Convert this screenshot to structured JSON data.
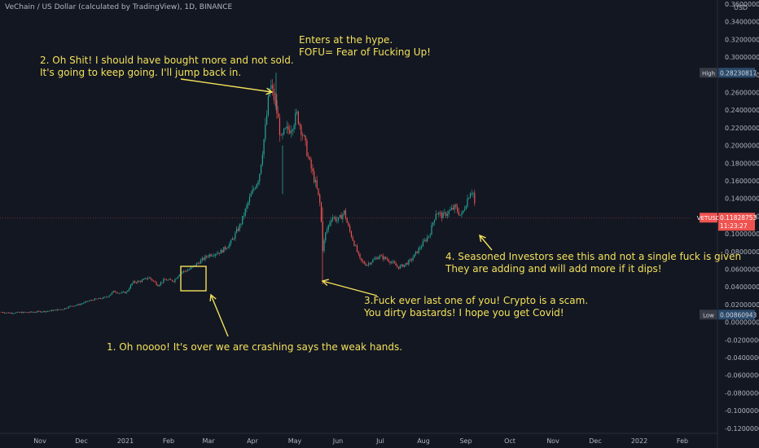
{
  "header": {
    "title": "VeChain / US Dollar (calculated by TradingView), 1D, BINANCE"
  },
  "chart_data": {
    "type": "candlestick",
    "symbol": "VETUSD",
    "currency": "USD",
    "yticks": [
      "-0.12000000",
      "-0.10000000",
      "-0.08000000",
      "-0.06000000",
      "-0.04000000",
      "-0.02000000",
      "0.00000000",
      "0.02000000",
      "0.04000000",
      "0.06000000",
      "0.08000000",
      "0.10000000",
      "0.12000000",
      "0.14000000",
      "0.16000000",
      "0.18000000",
      "0.20000000",
      "0.22000000",
      "0.24000000",
      "0.26000000",
      "0.28000000",
      "0.30000000",
      "0.32000000",
      "0.34000000",
      "0.36000000"
    ],
    "ylim": [
      -0.125,
      0.362
    ],
    "xticks": [
      "Nov",
      "Dec",
      "2021",
      "Feb",
      "Mar",
      "Apr",
      "May",
      "Jun",
      "Jul",
      "Aug",
      "Sep",
      "Oct",
      "Nov",
      "Dec",
      "2022",
      "Feb"
    ],
    "price_path": [
      [
        0.0,
        0.0115
      ],
      [
        0.03,
        0.0105
      ],
      [
        0.06,
        0.011
      ],
      [
        0.09,
        0.0112
      ],
      [
        0.12,
        0.012
      ],
      [
        0.15,
        0.0125
      ],
      [
        0.18,
        0.014
      ],
      [
        0.2,
        0.015
      ],
      [
        0.22,
        0.018
      ],
      [
        0.25,
        0.02
      ],
      [
        0.28,
        0.024
      ],
      [
        0.3,
        0.026
      ],
      [
        0.32,
        0.027
      ],
      [
        0.34,
        0.029
      ],
      [
        0.36,
        0.035
      ],
      [
        0.38,
        0.033
      ],
      [
        0.4,
        0.034
      ],
      [
        0.42,
        0.045
      ],
      [
        0.45,
        0.047
      ],
      [
        0.47,
        0.051
      ],
      [
        0.5,
        0.042
      ],
      [
        0.52,
        0.048
      ],
      [
        0.55,
        0.047
      ],
      [
        0.57,
        0.056
      ],
      [
        0.6,
        0.06
      ],
      [
        0.63,
        0.068
      ],
      [
        0.66,
        0.076
      ],
      [
        0.7,
        0.08
      ],
      [
        0.73,
        0.09
      ],
      [
        0.76,
        0.11
      ],
      [
        0.79,
        0.14
      ],
      [
        0.82,
        0.165
      ],
      [
        0.84,
        0.22
      ],
      [
        0.855,
        0.27
      ],
      [
        0.87,
        0.25
      ],
      [
        0.88,
        0.23
      ],
      [
        0.89,
        0.205
      ],
      [
        0.9,
        0.215
      ],
      [
        0.92,
        0.22
      ],
      [
        0.94,
        0.235
      ],
      [
        0.96,
        0.21
      ],
      [
        0.98,
        0.18
      ],
      [
        1.0,
        0.155
      ],
      [
        1.015,
        0.13
      ],
      [
        1.02,
        0.08
      ],
      [
        1.03,
        0.1
      ],
      [
        1.05,
        0.12
      ],
      [
        1.07,
        0.115
      ],
      [
        1.09,
        0.125
      ],
      [
        1.1,
        0.11
      ],
      [
        1.12,
        0.09
      ],
      [
        1.14,
        0.07
      ],
      [
        1.16,
        0.065
      ],
      [
        1.18,
        0.07
      ],
      [
        1.2,
        0.075
      ],
      [
        1.22,
        0.072
      ],
      [
        1.24,
        0.068
      ],
      [
        1.26,
        0.062
      ],
      [
        1.28,
        0.065
      ],
      [
        1.3,
        0.07
      ],
      [
        1.32,
        0.08
      ],
      [
        1.34,
        0.09
      ],
      [
        1.36,
        0.1
      ],
      [
        1.38,
        0.125
      ],
      [
        1.4,
        0.12
      ],
      [
        1.42,
        0.125
      ],
      [
        1.44,
        0.13
      ],
      [
        1.46,
        0.12
      ],
      [
        1.48,
        0.14
      ],
      [
        1.49,
        0.15
      ],
      [
        1.5,
        0.145
      ],
      [
        1.505,
        0.1183
      ]
    ],
    "price_labels": {
      "high": {
        "label": "High",
        "value": "0.28230817",
        "price": 0.2823
      },
      "current": {
        "label": "VETUSD",
        "value": "0.11828753",
        "countdown": "11:23:27",
        "price": 0.1183
      },
      "low": {
        "label": "Low",
        "value": "0.00860943",
        "price": 0.0086
      }
    },
    "annotations": [
      {
        "id": "note1",
        "lines": [
          "1. Oh noooo! It's over we are crashing says the weak hands."
        ]
      },
      {
        "id": "note2",
        "lines": [
          "2. Oh Shit! I should have bought more and not sold.",
          "It's going to keep going. I'll jump back in."
        ]
      },
      {
        "id": "note3",
        "lines": [
          "Enters at the hype.",
          "FOFU= Fear of Fucking Up!"
        ]
      },
      {
        "id": "note4",
        "lines": [
          "3.Fuck ever last one of you! Crypto is a scam.",
          "You dirty bastards! I hope you get Covid!"
        ]
      },
      {
        "id": "note5",
        "lines": [
          "4. Seasoned Investors see this and not a single fuck is given",
          "They are adding and will add more if it dips!"
        ]
      }
    ],
    "colors": {
      "background": "#131722",
      "up": "#26a69a",
      "down": "#ef5350",
      "annotation": "#f3e15a",
      "axis_text": "#b2b5be"
    }
  }
}
